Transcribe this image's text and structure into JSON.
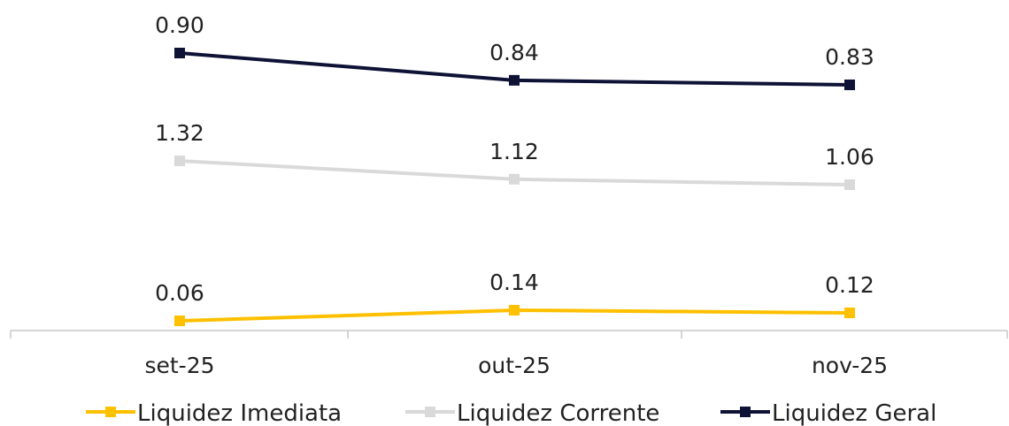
{
  "chart_data": {
    "type": "line",
    "categories": [
      "set-25",
      "out-25",
      "nov-25"
    ],
    "series": [
      {
        "name": "Liquidez Imediata",
        "color": "#FFC000",
        "values": [
          0.06,
          0.14,
          0.12
        ],
        "labels": [
          "0.06",
          "0.14",
          "0.12"
        ]
      },
      {
        "name": "Liquidez Corrente",
        "color": "#D9D9D9",
        "values": [
          1.32,
          1.12,
          1.06
        ],
        "labels": [
          "1.32",
          "1.12",
          "1.06"
        ]
      },
      {
        "name": "Liquidez Geral",
        "color": "#0E1235",
        "values": [
          0.9,
          0.84,
          0.83
        ],
        "labels": [
          "0.90",
          "0.84",
          "0.83"
        ]
      }
    ],
    "legend_position": "bottom",
    "grid": false
  }
}
